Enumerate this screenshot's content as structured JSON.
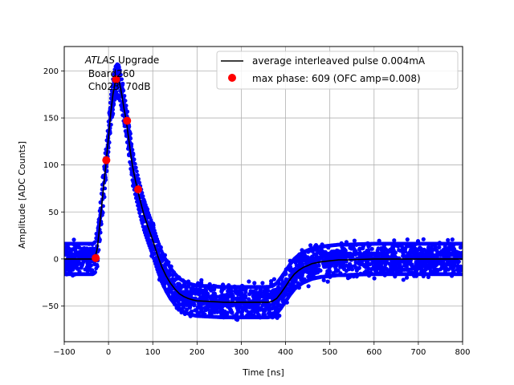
{
  "chart_data": {
    "type": "scatter",
    "xlabel": "Time [ns]",
    "ylabel": "Amplitude [ADC Counts]",
    "xlim": [
      -100,
      800
    ],
    "ylim": [
      -88,
      226
    ],
    "xticks": [
      -100,
      0,
      100,
      200,
      300,
      400,
      500,
      600,
      700,
      800
    ],
    "yticks": [
      -50,
      0,
      50,
      100,
      150,
      200
    ],
    "xtick_labels": [
      "−100",
      "0",
      "100",
      "200",
      "300",
      "400",
      "500",
      "600",
      "700",
      "800"
    ],
    "ytick_labels": [
      "−50",
      "0",
      "50",
      "100",
      "150",
      "200"
    ],
    "grid": true,
    "legend_position": "top-right",
    "annotation": {
      "line1_italic": "ATLAS",
      "line1_rest": " Upgrade",
      "line2": " Board260",
      "line3": " Ch023, 70dB"
    },
    "series": [
      {
        "name": "average interleaved pulse 0.004mA",
        "kind": "line",
        "color": "#000000",
        "x": [
          -100,
          -50,
          -35,
          -30,
          -25,
          -20,
          -15,
          -10,
          -5,
          0,
          5,
          10,
          15,
          20,
          25,
          30,
          35,
          40,
          45,
          50,
          55,
          60,
          65,
          70,
          80,
          90,
          100,
          110,
          120,
          130,
          140,
          150,
          160,
          170,
          180,
          190,
          200,
          220,
          240,
          260,
          280,
          300,
          320,
          340,
          360,
          370,
          380,
          390,
          400,
          410,
          420,
          430,
          440,
          450,
          460,
          480,
          500,
          520,
          540,
          560,
          600,
          650,
          700,
          750,
          800
        ],
        "y": [
          0,
          0,
          0,
          2,
          12,
          35,
          58,
          82,
          105,
          130,
          155,
          175,
          188,
          191,
          187,
          175,
          160,
          147,
          130,
          112,
          97,
          85,
          75,
          65,
          47,
          33,
          20,
          5,
          -8,
          -18,
          -26,
          -32,
          -37,
          -40,
          -42,
          -43.5,
          -44.5,
          -45,
          -45.5,
          -46,
          -46,
          -46,
          -46,
          -46,
          -46,
          -45,
          -42,
          -36,
          -29,
          -22,
          -16,
          -12,
          -9,
          -7,
          -5,
          -3,
          -2,
          -1,
          -1,
          -0.5,
          0,
          0,
          0,
          0,
          0
        ]
      },
      {
        "name": "max phase: 609 (OFC amp=0.008)",
        "kind": "points",
        "color": "#ff0000",
        "x": [
          -29,
          -5,
          17,
          42,
          67
        ],
        "y": [
          1,
          105,
          191,
          147,
          74
        ]
      },
      {
        "name": "",
        "kind": "noise-band",
        "color": "#0000ff",
        "noise_amplitude": 17
      }
    ]
  }
}
